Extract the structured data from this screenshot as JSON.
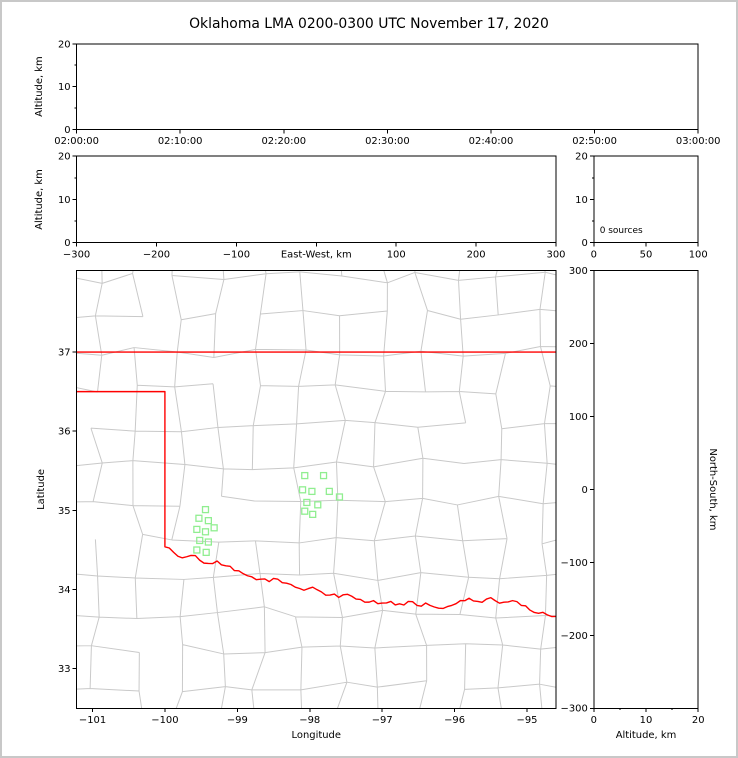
{
  "title": "Oklahoma LMA 0200-0300 UTC November 17, 2020",
  "colors": {
    "frame": "#000000",
    "text": "#000000",
    "county_lines": "#c9c9c9",
    "state_border": "#ff0000",
    "station_marker": "#90ee90",
    "background": "#ffffff",
    "window_border": "#c8c8c8"
  },
  "chart_data": [
    {
      "id": "time_height",
      "type": "scatter",
      "panel": "top",
      "xlabel": "",
      "ylabel": "Altitude, km",
      "x_tick_labels": [
        "02:00:00",
        "02:10:00",
        "02:20:00",
        "02:30:00",
        "02:40:00",
        "02:50:00",
        "03:00:00"
      ],
      "ylim": [
        0,
        20
      ],
      "yticks": [
        0,
        10,
        20
      ],
      "y_minor_ticks": [
        5,
        15
      ],
      "points": []
    },
    {
      "id": "ew_height",
      "type": "scatter",
      "panel": "middle-left",
      "xlabel": "East-West, km",
      "ylabel": "Altitude, km",
      "xlim": [
        -300,
        300
      ],
      "xticks": [
        -300,
        -200,
        -100,
        0,
        100,
        200,
        300
      ],
      "xlabel_replaces_zero_tick": true,
      "ylim": [
        0,
        20
      ],
      "yticks": [
        0,
        10,
        20
      ],
      "y_minor_ticks": [
        5,
        15
      ],
      "points": []
    },
    {
      "id": "alt_histogram",
      "type": "line",
      "panel": "middle-right",
      "xlabel": "",
      "ylabel": "",
      "xlim": [
        0,
        100
      ],
      "xticks": [
        0,
        50,
        100
      ],
      "ylim": [
        0,
        20
      ],
      "yticks": [
        0,
        10,
        20
      ],
      "y_minor_ticks": [
        5,
        15
      ],
      "annotation": "0 sources",
      "points": []
    },
    {
      "id": "map",
      "type": "scatter",
      "panel": "main",
      "xlabel": "Longitude",
      "ylabel": "Latitude",
      "xlim": [
        -101.22,
        -94.6
      ],
      "xticks": [
        -101,
        -100,
        -99,
        -98,
        -97,
        -96,
        -95
      ],
      "ylim": [
        32.5,
        38.03
      ],
      "yticks": [
        33,
        34,
        35,
        36,
        37
      ],
      "station_markers_lon_lat": [
        [
          -99.44,
          35.01
        ],
        [
          -99.53,
          34.9
        ],
        [
          -99.4,
          34.87
        ],
        [
          -99.56,
          34.76
        ],
        [
          -99.44,
          34.73
        ],
        [
          -99.32,
          34.78
        ],
        [
          -99.52,
          34.62
        ],
        [
          -99.4,
          34.6
        ],
        [
          -99.56,
          34.5
        ],
        [
          -99.43,
          34.47
        ],
        [
          -98.07,
          35.44
        ],
        [
          -97.81,
          35.44
        ],
        [
          -98.1,
          35.26
        ],
        [
          -97.97,
          35.24
        ],
        [
          -97.73,
          35.24
        ],
        [
          -97.59,
          35.17
        ],
        [
          -98.04,
          35.1
        ],
        [
          -97.89,
          35.07
        ],
        [
          -98.07,
          34.99
        ],
        [
          -97.96,
          34.95
        ]
      ],
      "kansas_border_lat": 37.0,
      "panhandle_border_lon_lat": [
        [
          -101.22,
          36.5
        ],
        [
          -100.0,
          36.5
        ],
        [
          -100.0,
          34.54
        ]
      ],
      "red_river_border_lon_lat": [
        [
          -100.0,
          34.54
        ],
        [
          -99.88,
          34.47
        ],
        [
          -99.76,
          34.4
        ],
        [
          -99.64,
          34.43
        ],
        [
          -99.52,
          34.37
        ],
        [
          -99.4,
          34.33
        ],
        [
          -99.28,
          34.36
        ],
        [
          -99.16,
          34.3
        ],
        [
          -99.04,
          34.24
        ],
        [
          -98.92,
          34.2
        ],
        [
          -98.8,
          34.16
        ],
        [
          -98.68,
          34.13
        ],
        [
          -98.56,
          34.1
        ],
        [
          -98.44,
          34.13
        ],
        [
          -98.32,
          34.08
        ],
        [
          -98.2,
          34.03
        ],
        [
          -98.08,
          33.99
        ],
        [
          -97.96,
          34.03
        ],
        [
          -97.84,
          33.97
        ],
        [
          -97.72,
          33.93
        ],
        [
          -97.6,
          33.9
        ],
        [
          -97.48,
          33.94
        ],
        [
          -97.36,
          33.88
        ],
        [
          -97.24,
          33.84
        ],
        [
          -97.12,
          33.86
        ],
        [
          -97.0,
          33.83
        ],
        [
          -96.88,
          33.85
        ],
        [
          -96.76,
          33.82
        ],
        [
          -96.64,
          33.85
        ],
        [
          -96.52,
          33.8
        ],
        [
          -96.4,
          33.83
        ],
        [
          -96.28,
          33.78
        ],
        [
          -96.16,
          33.76
        ],
        [
          -96.04,
          33.8
        ],
        [
          -95.92,
          33.86
        ],
        [
          -95.8,
          33.89
        ],
        [
          -95.68,
          33.85
        ],
        [
          -95.56,
          33.88
        ],
        [
          -95.44,
          33.86
        ],
        [
          -95.32,
          33.84
        ],
        [
          -95.2,
          33.86
        ],
        [
          -95.08,
          33.8
        ],
        [
          -94.96,
          33.74
        ],
        [
          -94.84,
          33.7
        ],
        [
          -94.72,
          33.68
        ],
        [
          -94.6,
          33.66
        ]
      ],
      "county_grid_approx": {
        "lon_start": -101.5,
        "lon_step": 0.56,
        "cols": 14,
        "lat_start": 32.3,
        "lat_step": 0.47,
        "rows": 14,
        "jitter_lon": 0.1,
        "jitter_lat": 0.08,
        "keep_probability": 0.9,
        "seed": 20201117
      }
    },
    {
      "id": "ns_height",
      "type": "scatter",
      "panel": "right",
      "xlabel": "Altitude, km",
      "ylabel": "North-South, km",
      "xlim": [
        0,
        20
      ],
      "xticks": [
        0,
        10,
        20
      ],
      "x_minor_ticks": [
        5,
        15
      ],
      "ylim": [
        -300,
        300
      ],
      "yticks": [
        -300,
        -200,
        -100,
        0,
        100,
        200,
        300
      ],
      "points": []
    }
  ]
}
